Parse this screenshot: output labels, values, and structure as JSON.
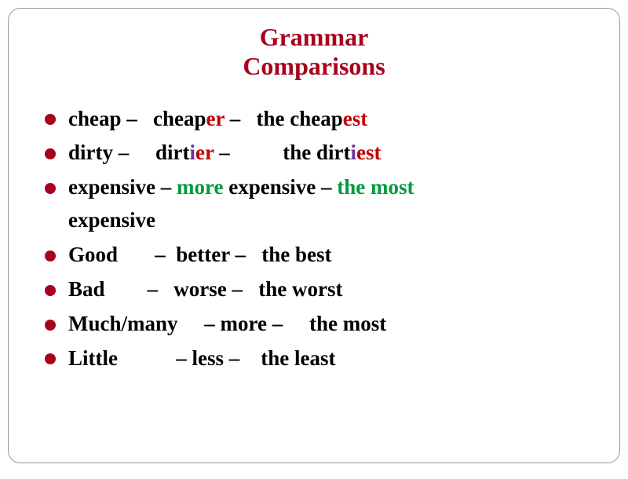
{
  "title_line1": "Grammar",
  "title_line2": "Comparisons",
  "colors": {
    "accent_red": "#a8001d",
    "suffix_red": "#c00000",
    "more_green": "#009a3e",
    "i_violet": "#7030a0",
    "text": "#000000",
    "border": "#999999",
    "background": "#ffffff"
  },
  "typography": {
    "title_fontsize_pt": 24,
    "item_fontsize_pt": 20,
    "font_family": "Georgia / serif",
    "font_weight": "bold"
  },
  "rows": [
    {
      "base": "cheap",
      "comp_stem": "cheap",
      "comp_suffix": "er",
      "sup_stem": "cheap",
      "sup_suffix": "est",
      "gap1": "   ",
      "gap2": "   "
    },
    {
      "base": "dirty",
      "comp_stem": "dirt",
      "comp_i": "i",
      "comp_suffix": "er",
      "sup_stem": "dirt",
      "sup_i": "i",
      "sup_suffix": "est",
      "gap1": "     ",
      "gap2": "          "
    },
    {
      "base": "expensive",
      "comp_more": "more",
      "comp_word": "expensive",
      "sup_the_most": "the most",
      "sup_word_wrapped": "expensive"
    },
    {
      "raw": "Good       –  better –   the best"
    },
    {
      "raw": "Bad        –   worse –   the worst"
    },
    {
      "raw": "Much/many     – more –     the most"
    },
    {
      "raw": "Little           – less –    the least"
    }
  ],
  "dash": " – "
}
